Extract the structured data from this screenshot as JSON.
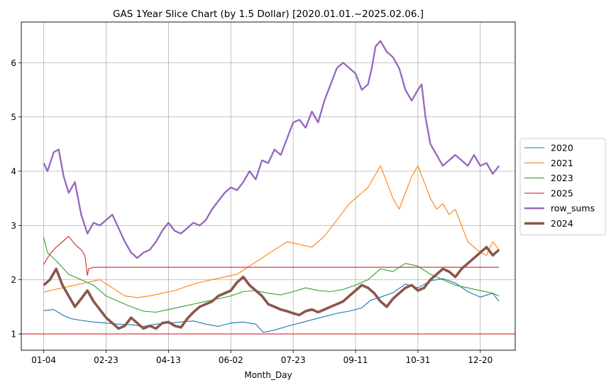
{
  "chart_data": {
    "type": "line",
    "title": "GAS 1Year Slice Chart (by 1.5 Dollar) [2020.01.01.~2025.02.06.]",
    "xlabel": "Month_Day",
    "ylabel": "",
    "x_tick_labels": [
      "01-04",
      "02-23",
      "04-13",
      "06-02",
      "07-23",
      "09-11",
      "10-31",
      "12-20"
    ],
    "x_tick_days": [
      0,
      50,
      100,
      150,
      200,
      250,
      300,
      350
    ],
    "y_ticks": [
      1,
      2,
      3,
      4,
      5,
      6
    ],
    "xlim": [
      -18,
      378
    ],
    "ylim": [
      0.7,
      6.75
    ],
    "grid": true,
    "legend_position": "center right (outside plot)",
    "reference_line": {
      "y": 1.0,
      "color": "#d62728"
    },
    "series": [
      {
        "name": "2020",
        "color": "#1f77b4",
        "width": 1.1,
        "x": [
          0,
          8,
          15,
          22,
          30,
          40,
          50,
          60,
          70,
          80,
          90,
          100,
          110,
          120,
          130,
          140,
          150,
          160,
          170,
          176,
          185,
          195,
          205,
          215,
          225,
          235,
          245,
          255,
          262,
          270,
          280,
          290,
          300,
          310,
          320,
          330,
          340,
          350,
          360,
          365
        ],
        "y": [
          1.43,
          1.45,
          1.35,
          1.28,
          1.25,
          1.22,
          1.2,
          1.18,
          1.17,
          1.14,
          1.18,
          1.2,
          1.22,
          1.24,
          1.18,
          1.14,
          1.2,
          1.22,
          1.18,
          1.03,
          1.07,
          1.14,
          1.2,
          1.26,
          1.32,
          1.38,
          1.42,
          1.48,
          1.62,
          1.68,
          1.76,
          1.92,
          1.85,
          1.98,
          2.02,
          1.94,
          1.78,
          1.68,
          1.75,
          1.6
        ]
      },
      {
        "name": "2021",
        "color": "#ff7f0e",
        "width": 1.1,
        "x": [
          0,
          5,
          15,
          25,
          35,
          45,
          55,
          65,
          75,
          85,
          95,
          105,
          115,
          125,
          135,
          145,
          155,
          165,
          175,
          185,
          195,
          205,
          215,
          225,
          235,
          245,
          255,
          260,
          265,
          270,
          275,
          280,
          285,
          290,
          295,
          300,
          305,
          310,
          315,
          320,
          325,
          330,
          335,
          340,
          345,
          350,
          355,
          360,
          365
        ],
        "y": [
          1.77,
          1.8,
          1.85,
          1.9,
          1.95,
          2.0,
          1.85,
          1.7,
          1.67,
          1.7,
          1.75,
          1.8,
          1.88,
          1.95,
          2.0,
          2.05,
          2.1,
          2.25,
          2.4,
          2.55,
          2.7,
          2.65,
          2.6,
          2.8,
          3.1,
          3.4,
          3.6,
          3.7,
          3.9,
          4.1,
          3.8,
          3.5,
          3.3,
          3.6,
          3.9,
          4.1,
          3.8,
          3.5,
          3.3,
          3.4,
          3.2,
          3.3,
          3.0,
          2.7,
          2.6,
          2.5,
          2.45,
          2.7,
          2.55
        ]
      },
      {
        "name": "2023",
        "color": "#2ca02c",
        "width": 1.1,
        "x": [
          0,
          3,
          10,
          20,
          30,
          40,
          50,
          60,
          70,
          80,
          90,
          100,
          110,
          120,
          130,
          140,
          150,
          160,
          170,
          180,
          190,
          200,
          210,
          220,
          230,
          240,
          250,
          260,
          270,
          280,
          290,
          300,
          310,
          320,
          330,
          340,
          350,
          360,
          365
        ],
        "y": [
          2.78,
          2.5,
          2.35,
          2.1,
          2.0,
          1.9,
          1.7,
          1.6,
          1.5,
          1.42,
          1.4,
          1.45,
          1.5,
          1.55,
          1.6,
          1.65,
          1.7,
          1.78,
          1.8,
          1.75,
          1.72,
          1.78,
          1.85,
          1.8,
          1.78,
          1.82,
          1.9,
          2.0,
          2.2,
          2.15,
          2.3,
          2.25,
          2.1,
          2.0,
          1.9,
          1.85,
          1.8,
          1.75,
          1.7
        ]
      },
      {
        "name": "2025",
        "color": "#d62728",
        "width": 1.1,
        "x": [
          0,
          3,
          6,
          10,
          15,
          20,
          25,
          30,
          33,
          35,
          36,
          40,
          50,
          100,
          150,
          200,
          250,
          300,
          350,
          365
        ],
        "y": [
          2.28,
          2.4,
          2.5,
          2.6,
          2.7,
          2.8,
          2.65,
          2.55,
          2.45,
          2.08,
          2.2,
          2.23,
          2.23,
          2.23,
          2.23,
          2.23,
          2.23,
          2.23,
          2.23,
          2.23
        ]
      },
      {
        "name": "row_sums",
        "color": "#9467bd",
        "width": 2.3,
        "x": [
          0,
          3,
          8,
          12,
          16,
          20,
          25,
          30,
          35,
          40,
          45,
          50,
          55,
          60,
          65,
          70,
          75,
          80,
          85,
          90,
          95,
          100,
          105,
          110,
          115,
          120,
          125,
          130,
          135,
          140,
          145,
          150,
          155,
          160,
          165,
          170,
          175,
          180,
          185,
          190,
          195,
          200,
          205,
          210,
          215,
          220,
          225,
          230,
          235,
          240,
          245,
          250,
          255,
          260,
          263,
          266,
          270,
          275,
          280,
          285,
          290,
          295,
          300,
          303,
          306,
          310,
          315,
          320,
          325,
          330,
          335,
          340,
          345,
          350,
          355,
          360,
          365
        ],
        "y": [
          4.15,
          4.0,
          4.35,
          4.4,
          3.9,
          3.6,
          3.8,
          3.2,
          2.85,
          3.05,
          3.0,
          3.1,
          3.2,
          2.95,
          2.7,
          2.5,
          2.4,
          2.5,
          2.55,
          2.7,
          2.9,
          3.05,
          2.9,
          2.85,
          2.95,
          3.05,
          3.0,
          3.1,
          3.3,
          3.45,
          3.6,
          3.7,
          3.65,
          3.8,
          4.0,
          3.85,
          4.2,
          4.15,
          4.4,
          4.3,
          4.6,
          4.9,
          4.95,
          4.8,
          5.1,
          4.9,
          5.3,
          5.6,
          5.9,
          6.0,
          5.9,
          5.8,
          5.5,
          5.6,
          5.9,
          6.3,
          6.4,
          6.2,
          6.1,
          5.9,
          5.5,
          5.3,
          5.5,
          5.6,
          5.0,
          4.5,
          4.3,
          4.1,
          4.2,
          4.3,
          4.2,
          4.1,
          4.3,
          4.1,
          4.15,
          3.95,
          4.1
        ]
      },
      {
        "name": "2024",
        "color": "#8c564b",
        "width": 3.6,
        "x": [
          0,
          5,
          10,
          15,
          20,
          25,
          30,
          35,
          40,
          45,
          50,
          55,
          60,
          65,
          70,
          75,
          80,
          85,
          90,
          95,
          100,
          105,
          110,
          115,
          120,
          125,
          130,
          135,
          140,
          145,
          150,
          155,
          160,
          165,
          170,
          175,
          180,
          185,
          190,
          195,
          200,
          205,
          210,
          215,
          220,
          225,
          230,
          235,
          240,
          245,
          250,
          255,
          260,
          265,
          270,
          275,
          280,
          285,
          290,
          295,
          300,
          305,
          310,
          315,
          320,
          325,
          330,
          335,
          340,
          345,
          350,
          355,
          360,
          365
        ],
        "y": [
          1.9,
          2.0,
          2.2,
          1.9,
          1.7,
          1.5,
          1.65,
          1.8,
          1.6,
          1.45,
          1.3,
          1.2,
          1.1,
          1.15,
          1.3,
          1.2,
          1.1,
          1.15,
          1.1,
          1.2,
          1.22,
          1.15,
          1.12,
          1.28,
          1.4,
          1.5,
          1.55,
          1.6,
          1.7,
          1.75,
          1.8,
          1.95,
          2.05,
          1.9,
          1.8,
          1.7,
          1.55,
          1.5,
          1.45,
          1.42,
          1.38,
          1.35,
          1.42,
          1.45,
          1.4,
          1.45,
          1.5,
          1.55,
          1.6,
          1.7,
          1.8,
          1.9,
          1.85,
          1.75,
          1.6,
          1.5,
          1.65,
          1.75,
          1.85,
          1.9,
          1.8,
          1.85,
          2.0,
          2.1,
          2.2,
          2.15,
          2.05,
          2.2,
          2.3,
          2.4,
          2.5,
          2.6,
          2.45,
          2.55
        ]
      }
    ]
  }
}
